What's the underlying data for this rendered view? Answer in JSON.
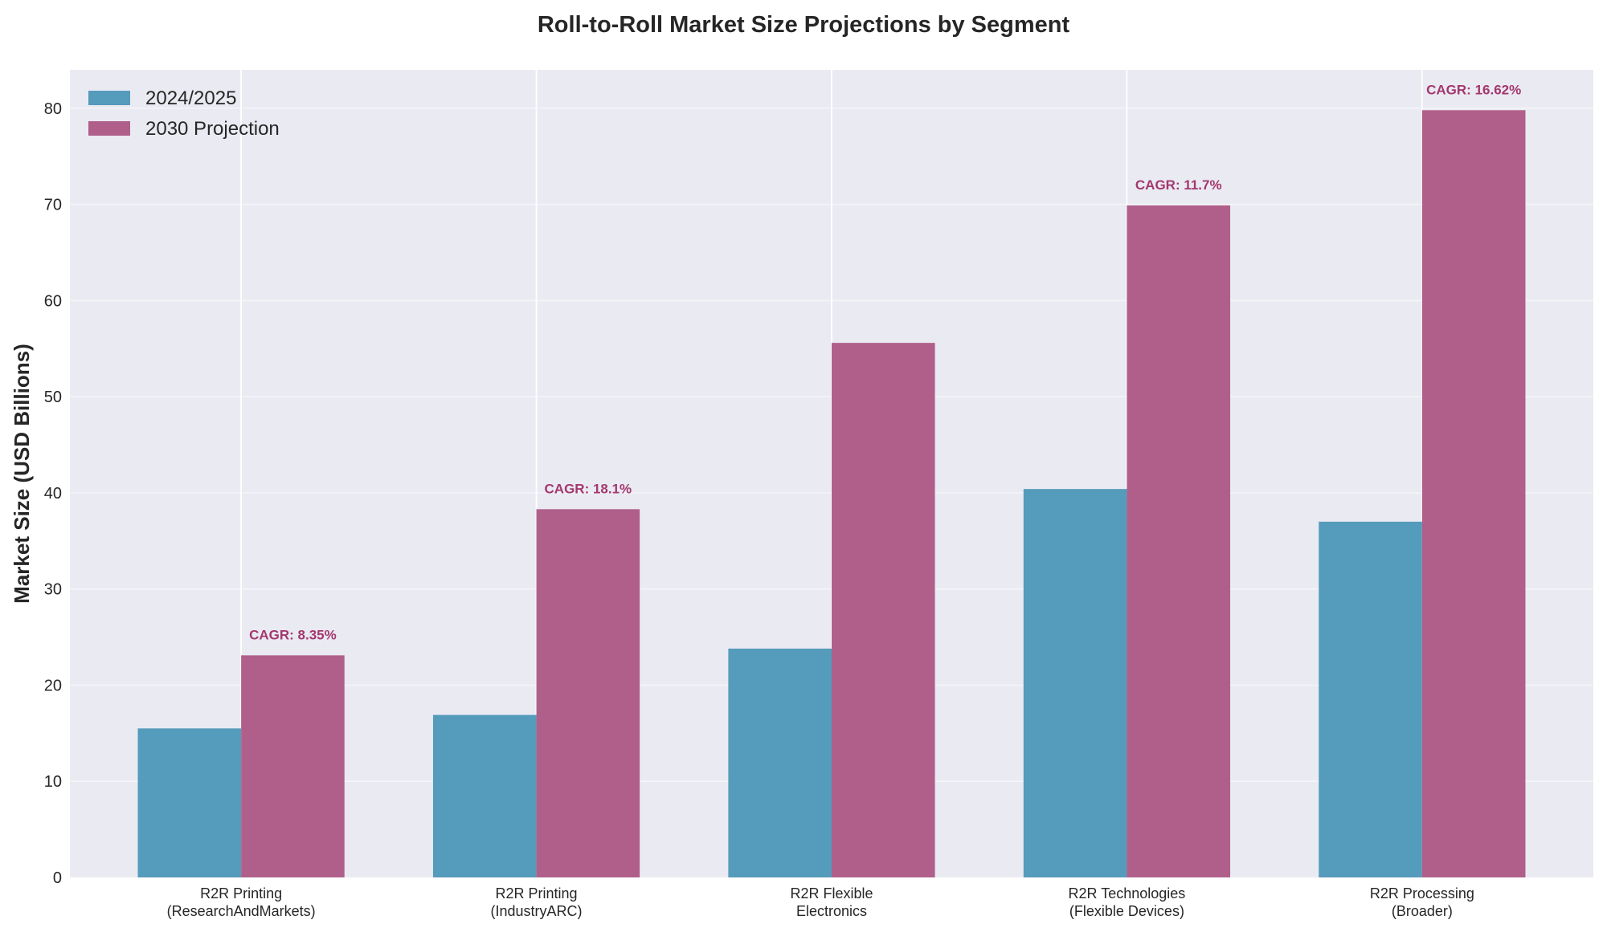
{
  "chart_data": {
    "type": "bar",
    "title": "Roll-to-Roll Market Size Projections by Segment",
    "xlabel": "",
    "ylabel": "Market Size (USD Billions)",
    "categories": [
      [
        "R2R Printing",
        "(ResearchAndMarkets)"
      ],
      [
        "R2R Printing",
        "(IndustryARC)"
      ],
      [
        "R2R Flexible",
        "Electronics"
      ],
      [
        "R2R Technologies",
        "(Flexible Devices)"
      ],
      [
        "R2R Processing",
        "(Broader)"
      ]
    ],
    "series": [
      {
        "name": "2024/2025",
        "color": "#559bbb",
        "values": [
          15.5,
          16.9,
          23.8,
          40.4,
          37.0
        ]
      },
      {
        "name": "2030 Projection",
        "color": "#b05f8a",
        "values": [
          23.1,
          38.3,
          55.6,
          69.9,
          79.8
        ]
      }
    ],
    "annotations": [
      "CAGR: 8.35%",
      "CAGR: 18.1%",
      "",
      "CAGR: 11.7%",
      "CAGR: 16.62%"
    ],
    "annotation_color": "#a3386e",
    "ylim": [
      0,
      84
    ],
    "yticks": [
      0,
      10,
      20,
      30,
      40,
      50,
      60,
      70,
      80
    ],
    "grid": true,
    "legend_position": "top-left",
    "background": "#eaeaf2"
  }
}
